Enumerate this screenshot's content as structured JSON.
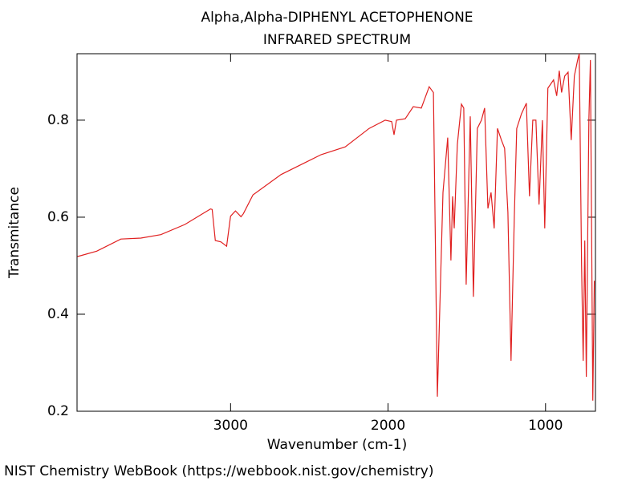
{
  "chart_data": {
    "type": "line",
    "title": "Alpha,Alpha-DIPHENYL ACETOPHENONE",
    "subtitle": "INFRARED SPECTRUM",
    "x_label": "Wavenumber (cm-1)",
    "y_label": "Transmitance",
    "source": "NIST Chemistry WebBook (https://webbook.nist.gov/chemistry)",
    "xlim": [
      3975,
      683
    ],
    "ylim": [
      0.2,
      0.937
    ],
    "xticks": [
      3000,
      2000,
      1000
    ],
    "yticks": [
      0.2,
      0.4,
      0.6,
      0.8
    ],
    "series": [
      {
        "color": "#e02020",
        "x": [
          3972,
          3850,
          3697,
          3570,
          3443,
          3290,
          3163,
          3127,
          3117,
          3097,
          3061,
          3025,
          3000,
          2969,
          2934,
          2919,
          2858,
          2679,
          2425,
          2272,
          2120,
          2018,
          1977,
          1962,
          1947,
          1891,
          1840,
          1789,
          1739,
          1712,
          1687,
          1651,
          1621,
          1601,
          1590,
          1580,
          1560,
          1534,
          1519,
          1504,
          1478,
          1458,
          1433,
          1407,
          1387,
          1366,
          1346,
          1326,
          1305,
          1280,
          1260,
          1239,
          1219,
          1198,
          1183,
          1153,
          1122,
          1102,
          1081,
          1061,
          1041,
          1020,
          1005,
          985,
          949,
          929,
          913,
          898,
          878,
          857,
          837,
          817,
          796,
          786,
          771,
          761,
          751,
          741,
          725,
          715,
          700,
          690
        ],
        "values": [
          0.519,
          0.53,
          0.555,
          0.557,
          0.564,
          0.585,
          0.61,
          0.617,
          0.616,
          0.552,
          0.549,
          0.54,
          0.602,
          0.613,
          0.601,
          0.607,
          0.646,
          0.688,
          0.729,
          0.745,
          0.783,
          0.8,
          0.797,
          0.77,
          0.8,
          0.803,
          0.828,
          0.825,
          0.869,
          0.857,
          0.23,
          0.651,
          0.764,
          0.511,
          0.643,
          0.577,
          0.75,
          0.833,
          0.825,
          0.461,
          0.808,
          0.436,
          0.783,
          0.8,
          0.825,
          0.618,
          0.651,
          0.577,
          0.783,
          0.759,
          0.742,
          0.61,
          0.304,
          0.602,
          0.783,
          0.813,
          0.835,
          0.643,
          0.8,
          0.8,
          0.626,
          0.8,
          0.577,
          0.866,
          0.883,
          0.85,
          0.902,
          0.857,
          0.891,
          0.899,
          0.759,
          0.891,
          0.924,
          0.937,
          0.502,
          0.304,
          0.552,
          0.271,
          0.8,
          0.924,
          0.222,
          0.469
        ]
      }
    ]
  }
}
